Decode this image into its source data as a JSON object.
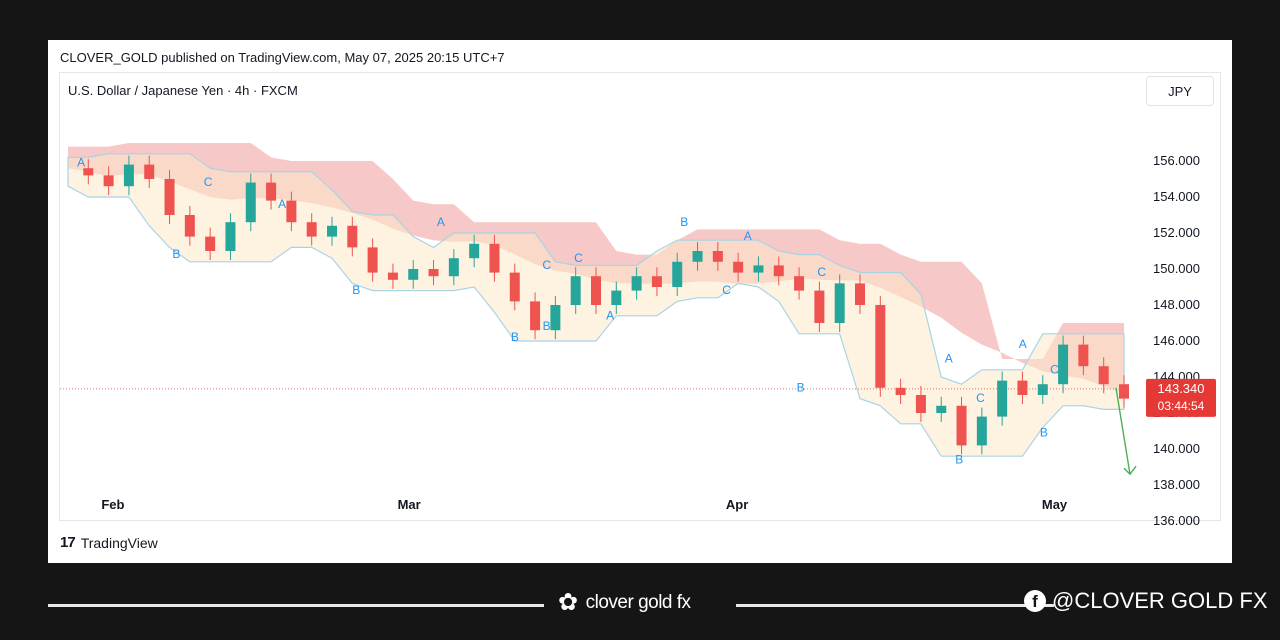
{
  "header": {
    "published": "CLOVER_GOLD published on TradingView.com, May 07, 2025 20:15 UTC+7",
    "symbol": "U.S. Dollar / Japanese Yen · 4h · FXCM",
    "currency": "JPY"
  },
  "footer": {
    "tradingview": "TradingView",
    "brand": "clover gold fx",
    "social": "@CLOVER GOLD FX"
  },
  "colors": {
    "up": "#26a69a",
    "down": "#ef5350",
    "cloud": "#f4b6b6",
    "band": "#a8d4e6",
    "price_tag": "#e53935",
    "wave_label": "#2196f3",
    "signal": "#ef5350"
  },
  "chart_data": {
    "type": "line",
    "symbol": "USDJPY",
    "timeframe": "4h",
    "ylim": [
      135.0,
      157.0
    ],
    "y_ticks": [
      "156.000",
      "154.000",
      "152.000",
      "150.000",
      "148.000",
      "146.000",
      "144.000",
      "142.000",
      "140.000",
      "138.000",
      "136.000"
    ],
    "x_ticks": [
      "Feb",
      "Mar",
      "Apr",
      "May"
    ],
    "last_price": "143.340",
    "countdown": "03:44:54",
    "series": [
      {
        "values": [
          155.6,
          155.2,
          154.6,
          155.8,
          155.0,
          153.0,
          151.8,
          151.0,
          152.6,
          154.8,
          153.8,
          152.6,
          151.8,
          152.4,
          151.2,
          149.8,
          149.4,
          150.0,
          149.6,
          150.6,
          151.4,
          149.8,
          148.2,
          146.6,
          148.0,
          149.6,
          148.0,
          148.8,
          149.6,
          149.0,
          150.4,
          151.0,
          150.4,
          149.8,
          150.2,
          149.6,
          148.8,
          147.0,
          149.2,
          148.0,
          143.4,
          143.0,
          142.0,
          142.4,
          140.2,
          141.8,
          143.8,
          143.0,
          143.6,
          145.8,
          144.6,
          143.6,
          142.8
        ]
      }
    ],
    "wave_labels": [
      {
        "label": "A",
        "x": "2025-01-29",
        "y": 155.7
      },
      {
        "label": "B",
        "x": "2025-02-07",
        "y": 150.6
      },
      {
        "label": "C",
        "x": "2025-02-10",
        "y": 154.6
      },
      {
        "label": "A",
        "x": "2025-02-17",
        "y": 153.4
      },
      {
        "label": "B",
        "x": "2025-02-24",
        "y": 148.6
      },
      {
        "label": "A",
        "x": "2025-03-04",
        "y": 152.4
      },
      {
        "label": "B",
        "x": "2025-03-11",
        "y": 146.0
      },
      {
        "label": "C",
        "x": "2025-03-14",
        "y": 150.0
      },
      {
        "label": "B",
        "x": "2025-03-14",
        "y": 146.6
      },
      {
        "label": "C",
        "x": "2025-03-17",
        "y": 150.4
      },
      {
        "label": "A",
        "x": "2025-03-20",
        "y": 147.2
      },
      {
        "label": "B",
        "x": "2025-03-27",
        "y": 152.4
      },
      {
        "label": "C",
        "x": "2025-03-31",
        "y": 148.6
      },
      {
        "label": "A",
        "x": "2025-04-02",
        "y": 151.6
      },
      {
        "label": "B",
        "x": "2025-04-07",
        "y": 143.2
      },
      {
        "label": "C",
        "x": "2025-04-09",
        "y": 149.6
      },
      {
        "label": "A",
        "x": "2025-04-21",
        "y": 144.8
      },
      {
        "label": "B",
        "x": "2025-04-22",
        "y": 139.2
      },
      {
        "label": "A",
        "x": "2025-04-28",
        "y": 145.6
      },
      {
        "label": "B",
        "x": "2025-04-30",
        "y": 140.7
      },
      {
        "label": "C",
        "x": "2025-04-24",
        "y": 142.6
      },
      {
        "label": "C",
        "x": "2025-05-01",
        "y": 144.2
      }
    ],
    "forecast_arrow": {
      "from": 143.4,
      "to": 138.6
    }
  }
}
